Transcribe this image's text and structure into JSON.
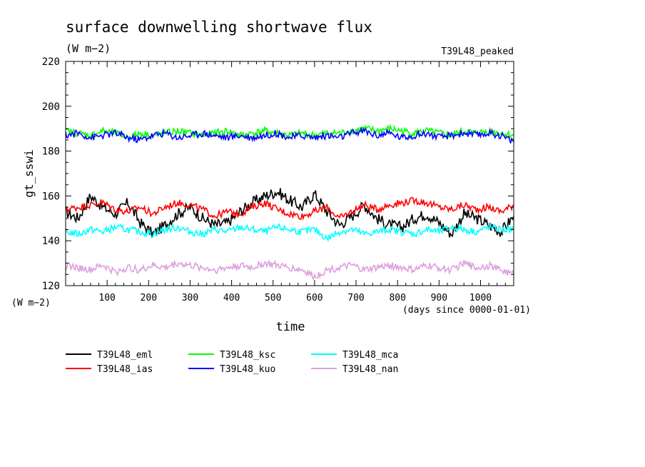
{
  "chart_data": {
    "type": "line",
    "title": "surface downwelling shortwave flux",
    "subtitle": "(W m−2)",
    "tag": "T39L48_peaked",
    "ylabel": "gt_sswi",
    "yunit": "(W m−2)",
    "xlabel": "time",
    "xunit": "(days since 0000-01-01)",
    "xlim": [
      0,
      1080
    ],
    "ylim": [
      120,
      220
    ],
    "xticks": [
      100,
      200,
      300,
      400,
      500,
      600,
      700,
      800,
      900,
      1000
    ],
    "yticks": [
      120,
      140,
      160,
      180,
      200,
      220
    ],
    "grid": false,
    "legend_position": "bottom",
    "series": [
      {
        "name": "T39L48_eml",
        "color": "#000000",
        "x": [
          0,
          30,
          60,
          90,
          120,
          150,
          180,
          210,
          240,
          270,
          300,
          330,
          360,
          390,
          420,
          450,
          480,
          510,
          540,
          570,
          600,
          630,
          660,
          690,
          720,
          750,
          780,
          810,
          840,
          870,
          900,
          930,
          960,
          990,
          1020,
          1050,
          1080
        ],
        "y": [
          153,
          150,
          160,
          155,
          152,
          157,
          148,
          143,
          147,
          152,
          155,
          150,
          147,
          148,
          153,
          157,
          160,
          162,
          158,
          155,
          161,
          153,
          147,
          151,
          156,
          150,
          147,
          146,
          150,
          152,
          148,
          143,
          152,
          150,
          147,
          144,
          151
        ]
      },
      {
        "name": "T39L48_ias",
        "color": "#ff0000",
        "x": [
          0,
          30,
          60,
          90,
          120,
          150,
          180,
          210,
          240,
          270,
          300,
          330,
          360,
          390,
          420,
          450,
          480,
          510,
          540,
          570,
          600,
          630,
          660,
          690,
          720,
          750,
          780,
          810,
          840,
          870,
          900,
          930,
          960,
          990,
          1020,
          1050,
          1080
        ],
        "y": [
          154,
          155,
          156,
          157,
          154,
          153,
          155,
          152,
          155,
          157,
          156,
          154,
          151,
          153,
          152,
          155,
          157,
          154,
          152,
          151,
          153,
          155,
          150,
          153,
          156,
          154,
          156,
          157,
          158,
          157,
          155,
          154,
          156,
          154,
          155,
          153,
          156
        ]
      },
      {
        "name": "T39L48_ksc",
        "color": "#00ff00",
        "x": [
          0,
          30,
          60,
          90,
          120,
          150,
          180,
          210,
          240,
          270,
          300,
          330,
          360,
          390,
          420,
          450,
          480,
          510,
          540,
          570,
          600,
          630,
          660,
          690,
          720,
          750,
          780,
          810,
          840,
          870,
          900,
          930,
          960,
          990,
          1020,
          1050,
          1080
        ],
        "y": [
          189,
          188,
          187,
          189,
          188,
          186,
          188,
          187,
          188,
          189,
          188,
          187,
          188,
          189,
          187,
          188,
          189,
          188,
          187,
          188,
          187,
          188,
          188,
          189,
          190,
          189,
          190,
          189,
          188,
          189,
          188,
          187,
          189,
          188,
          189,
          188,
          187
        ]
      },
      {
        "name": "T39L48_kuo",
        "color": "#0000ff",
        "x": [
          0,
          30,
          60,
          90,
          120,
          150,
          180,
          210,
          240,
          270,
          300,
          330,
          360,
          390,
          420,
          450,
          480,
          510,
          540,
          570,
          600,
          630,
          660,
          690,
          720,
          750,
          780,
          810,
          840,
          870,
          900,
          930,
          960,
          990,
          1020,
          1050,
          1080
        ],
        "y": [
          187,
          188,
          186,
          187,
          188,
          186,
          185,
          187,
          188,
          186,
          187,
          188,
          187,
          186,
          187,
          186,
          187,
          188,
          186,
          187,
          186,
          187,
          186,
          188,
          189,
          187,
          188,
          186,
          187,
          188,
          186,
          187,
          188,
          187,
          188,
          187,
          184
        ]
      },
      {
        "name": "T39L48_mca",
        "color": "#00ffff",
        "x": [
          0,
          30,
          60,
          90,
          120,
          150,
          180,
          210,
          240,
          270,
          300,
          330,
          360,
          390,
          420,
          450,
          480,
          510,
          540,
          570,
          600,
          630,
          660,
          690,
          720,
          750,
          780,
          810,
          840,
          870,
          900,
          930,
          960,
          990,
          1020,
          1050,
          1080
        ],
        "y": [
          144,
          143,
          145,
          144,
          146,
          145,
          144,
          143,
          145,
          146,
          144,
          143,
          145,
          144,
          146,
          145,
          144,
          146,
          145,
          144,
          145,
          141,
          144,
          145,
          143,
          144,
          145,
          144,
          143,
          145,
          144,
          146,
          145,
          144,
          146,
          145,
          145
        ]
      },
      {
        "name": "T39L48_nan",
        "color": "#dda0dd",
        "x": [
          0,
          30,
          60,
          90,
          120,
          150,
          180,
          210,
          240,
          270,
          300,
          330,
          360,
          390,
          420,
          450,
          480,
          510,
          540,
          570,
          600,
          630,
          660,
          690,
          720,
          750,
          780,
          810,
          840,
          870,
          900,
          930,
          960,
          990,
          1020,
          1050,
          1080
        ],
        "y": [
          129,
          128,
          127,
          129,
          126,
          128,
          127,
          129,
          128,
          130,
          129,
          128,
          127,
          128,
          129,
          128,
          130,
          129,
          128,
          127,
          124,
          127,
          128,
          129,
          127,
          128,
          129,
          128,
          127,
          129,
          128,
          127,
          130,
          128,
          129,
          127,
          125
        ]
      }
    ]
  }
}
